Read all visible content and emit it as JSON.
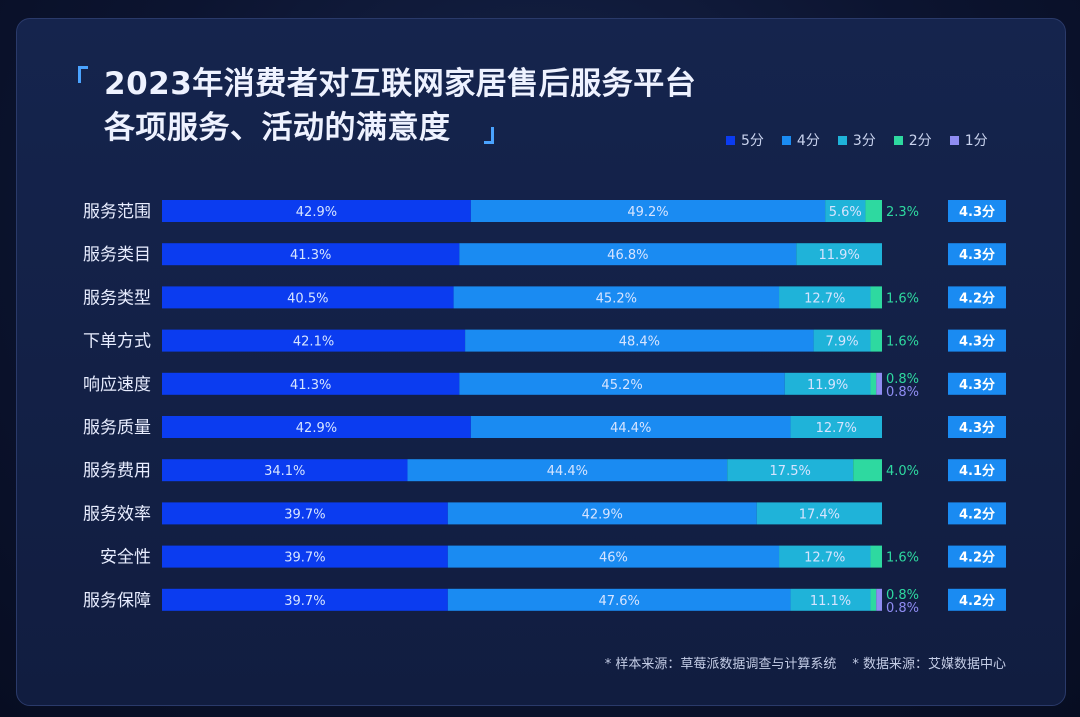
{
  "title_line1": "2023年消费者对互联网家居售后服务平台",
  "title_line2": "各项服务、活动的满意度",
  "legend": [
    {
      "label": "5分",
      "color": "#0b3cf0"
    },
    {
      "label": "4分",
      "color": "#1a8bf2"
    },
    {
      "label": "3分",
      "color": "#1fb3d9"
    },
    {
      "label": "2分",
      "color": "#2ed9a0"
    },
    {
      "label": "1分",
      "color": "#8f8cf2"
    }
  ],
  "footnotes": {
    "sample": "* 样本来源：草莓派数据调查与计算系统",
    "data": "* 数据来源：艾媒数据中心"
  },
  "chart_data": {
    "type": "bar",
    "orientation": "horizontal",
    "stacked": true,
    "unit": "%",
    "categories": [
      "服务范围",
      "服务类目",
      "服务类型",
      "下单方式",
      "响应速度",
      "服务质量",
      "服务费用",
      "服务效率",
      "安全性",
      "服务保障"
    ],
    "series": [
      {
        "name": "5分",
        "color": "#0b3cf0",
        "values": [
          42.9,
          41.3,
          40.5,
          42.1,
          41.3,
          42.9,
          34.1,
          39.7,
          39.7,
          39.7
        ],
        "labels": [
          "42.9%",
          "41.3%",
          "40.5%",
          "42.1%",
          "41.3%",
          "42.9%",
          "34.1%",
          "39.7%",
          "39.7%",
          "39.7%"
        ]
      },
      {
        "name": "4分",
        "color": "#1a8bf2",
        "values": [
          49.2,
          46.8,
          45.2,
          48.4,
          45.2,
          44.4,
          44.4,
          42.9,
          46,
          47.6
        ],
        "labels": [
          "49.2%",
          "46.8%",
          "45.2%",
          "48.4%",
          "45.2%",
          "44.4%",
          "44.4%",
          "42.9%",
          "46%",
          "47.6%"
        ]
      },
      {
        "name": "3分",
        "color": "#1fb3d9",
        "values": [
          5.6,
          11.9,
          12.7,
          7.9,
          11.9,
          12.7,
          17.5,
          17.4,
          12.7,
          11.1
        ],
        "labels": [
          "5.6%",
          "11.9%",
          "12.7%",
          "7.9%",
          "11.9%",
          "12.7%",
          "17.5%",
          "17.4%",
          "12.7%",
          "11.1%"
        ]
      },
      {
        "name": "2分",
        "color": "#2ed9a0",
        "values": [
          2.3,
          0,
          1.6,
          1.6,
          0.8,
          0,
          4.0,
          0,
          1.6,
          0.8
        ],
        "labels": [
          "2.3%",
          "",
          "1.6%",
          "1.6%",
          "0.8%",
          "",
          "4.0%",
          "",
          "1.6%",
          "0.8%"
        ]
      },
      {
        "name": "1分",
        "color": "#8f8cf2",
        "values": [
          0,
          0,
          0,
          0,
          0.8,
          0,
          0,
          0,
          0,
          0.8
        ],
        "labels": [
          "",
          "",
          "",
          "",
          "0.8%",
          "",
          "",
          "",
          "",
          "0.8%"
        ]
      }
    ],
    "scores": [
      "4.3分",
      "4.3分",
      "4.2分",
      "4.3分",
      "4.3分",
      "4.3分",
      "4.1分",
      "4.2分",
      "4.2分",
      "4.2分"
    ],
    "xlim": [
      0,
      100
    ]
  }
}
